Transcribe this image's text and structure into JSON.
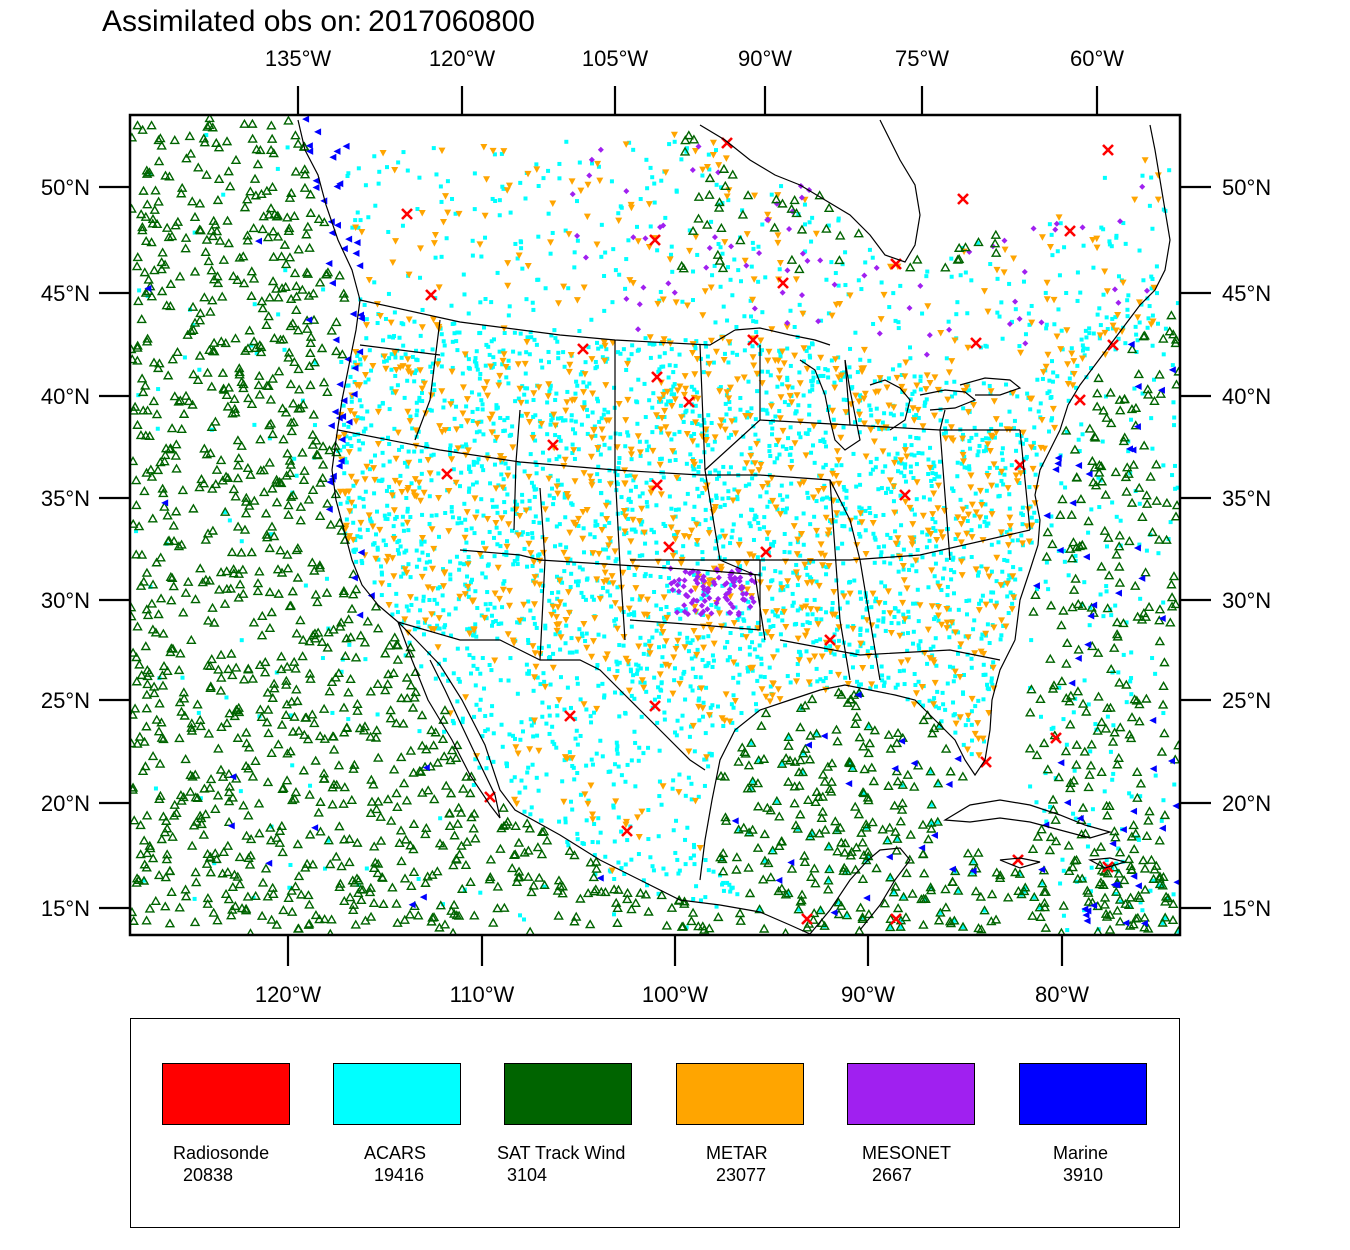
{
  "title": {
    "prefix": "Assimilated obs on:",
    "date": "2017060800"
  },
  "map": {
    "top_lon_labels": [
      "135°W",
      "120°W",
      "105°W",
      "90°W",
      "75°W",
      "60°W"
    ],
    "bottom_lon_labels": [
      "120°W",
      "110°W",
      "100°W",
      "90°W",
      "80°W"
    ],
    "left_lat_labels": [
      "50°N",
      "45°N",
      "40°N",
      "35°N",
      "30°N",
      "25°N",
      "20°N",
      "15°N"
    ],
    "right_lat_labels": [
      "50°N",
      "45°N",
      "40°N",
      "35°N",
      "30°N",
      "25°N",
      "20°N",
      "15°N"
    ]
  },
  "legend": [
    {
      "label": "Radiosonde",
      "count": "20838",
      "color": "#ff0000",
      "icon": "cross-marker-icon"
    },
    {
      "label": "ACARS",
      "count": "19416",
      "color": "#00ffff",
      "icon": "square-marker-icon"
    },
    {
      "label": "SAT Track Wind",
      "count": "3104",
      "color": "#006400",
      "icon": "triangle-marker-icon"
    },
    {
      "label": "METAR",
      "count": "23077",
      "color": "#ffa500",
      "icon": "down-triangle-marker-icon"
    },
    {
      "label": "MESONET",
      "count": "2667",
      "color": "#a020f0",
      "icon": "diamond-marker-icon"
    },
    {
      "label": "Marine",
      "count": "3910",
      "color": "#0000ff",
      "icon": "left-triangle-marker-icon"
    }
  ]
}
